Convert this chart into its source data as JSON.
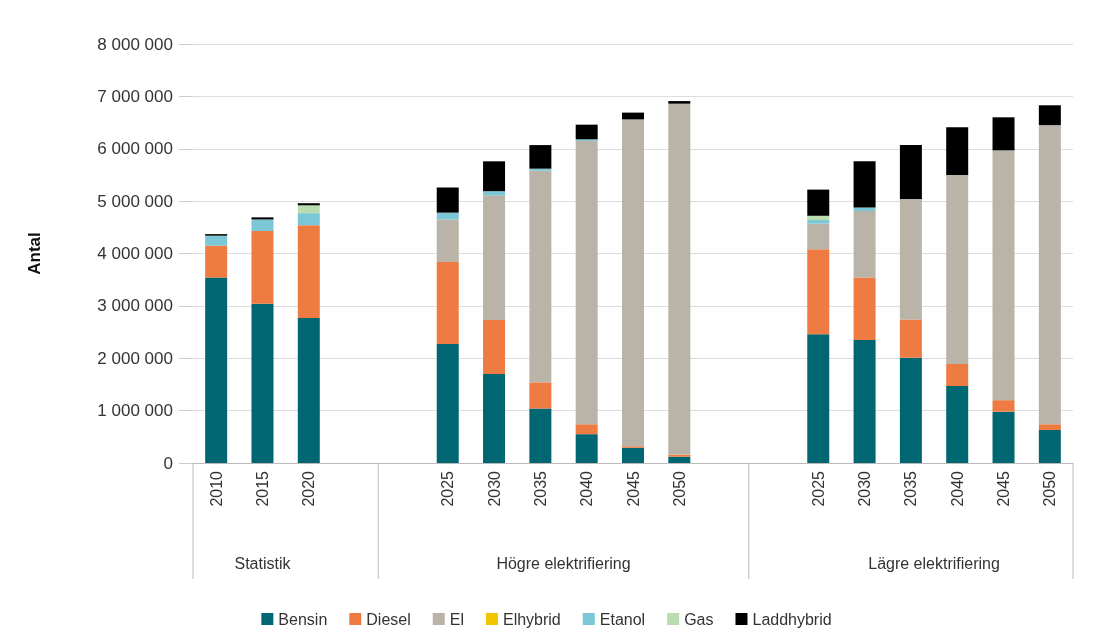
{
  "chart_data": {
    "type": "bar",
    "stacked": true,
    "ylabel": "Antal",
    "categories": [
      "2010",
      "2015",
      "2020",
      null,
      null,
      "2025",
      "2030",
      "2035",
      "2040",
      "2045",
      "2050",
      null,
      null,
      "2025",
      "2030",
      "2035",
      "2040",
      "2045",
      "2050"
    ],
    "series": [
      {
        "name": "Bensin",
        "color": "#006672",
        "values": [
          3540000,
          3040000,
          2770000,
          null,
          null,
          2270000,
          1700000,
          1040000,
          550000,
          290000,
          120000,
          null,
          null,
          2460000,
          2350000,
          2010000,
          1470000,
          980000,
          630000
        ]
      },
      {
        "name": "Diesel",
        "color": "#ee7b41",
        "values": [
          610000,
          1390000,
          1770000,
          null,
          null,
          1570000,
          1030000,
          500000,
          190000,
          30000,
          40000,
          null,
          null,
          1620000,
          1190000,
          730000,
          420000,
          220000,
          110000
        ]
      },
      {
        "name": "El",
        "color": "#bab4a8",
        "values": [
          0,
          0,
          0,
          null,
          null,
          810000,
          2380000,
          4040000,
          5410000,
          6240000,
          6700000,
          null,
          null,
          490000,
          1270000,
          2300000,
          3610000,
          4770000,
          5710000
        ]
      },
      {
        "name": "Elhybrid",
        "color": "#f5c400",
        "values": [
          0,
          0,
          0,
          null,
          null,
          0,
          0,
          0,
          0,
          0,
          0,
          null,
          null,
          0,
          0,
          0,
          0,
          0,
          0
        ]
      },
      {
        "name": "Etanol",
        "color": "#7cc7d6",
        "values": [
          190000,
          220000,
          230000,
          null,
          null,
          130000,
          80000,
          40000,
          30000,
          0,
          0,
          null,
          null,
          70000,
          70000,
          0,
          0,
          0,
          0
        ]
      },
      {
        "name": "Gas",
        "color": "#b9dcb0",
        "values": [
          0,
          0,
          150000,
          null,
          null,
          0,
          0,
          0,
          0,
          0,
          0,
          null,
          null,
          80000,
          0,
          0,
          0,
          0,
          0
        ]
      },
      {
        "name": "Laddhybrid",
        "color": "#000000",
        "values": [
          30000,
          40000,
          40000,
          null,
          null,
          480000,
          570000,
          450000,
          280000,
          130000,
          50000,
          null,
          null,
          500000,
          880000,
          1030000,
          910000,
          630000,
          380000
        ]
      }
    ],
    "annotations": [
      "Statistik",
      "Högre elektrifiering",
      "Lägre elektrifiering"
    ],
    "ylim": [
      0,
      8000000
    ],
    "yticks": [
      0,
      1000000,
      2000000,
      3000000,
      4000000,
      5000000,
      6000000,
      7000000,
      8000000
    ],
    "grid": "y",
    "legend": "bottom"
  }
}
